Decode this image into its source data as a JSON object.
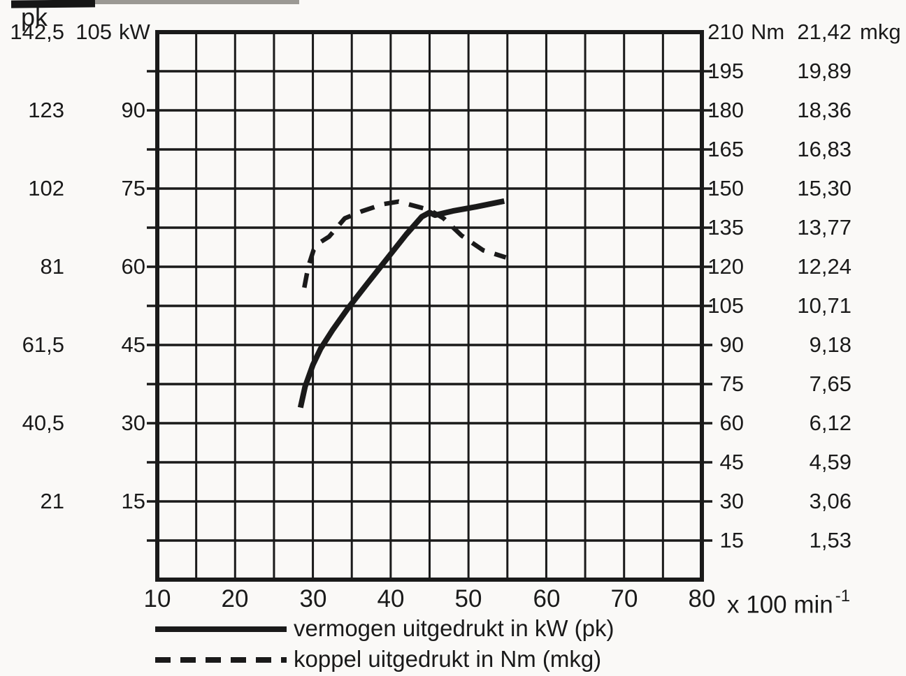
{
  "page": {
    "bg": "#faf9f7",
    "ink": "#1a1a1a"
  },
  "left_axis": {
    "pk_title": "pk",
    "kw_unit": "kW",
    "pk_values": [
      "142,5",
      "123",
      "102",
      "81",
      "61,5",
      "40,5",
      "21"
    ],
    "kw_values": [
      "105",
      "90",
      "75",
      "60",
      "45",
      "30",
      "15"
    ]
  },
  "right_axis": {
    "nm_unit": "Nm",
    "mkg_unit": "mkg",
    "nm_values": [
      "210",
      "195",
      "180",
      "165",
      "150",
      "135",
      "120",
      "105",
      "90",
      "75",
      "60",
      "45",
      "30",
      "15"
    ],
    "mkg_values": [
      "21,42",
      "19,89",
      "18,36",
      "16,83",
      "15,30",
      "13,77",
      "12,24",
      "10,71",
      "9,18",
      "7,65",
      "6,12",
      "4,59",
      "3,06",
      "1,53"
    ]
  },
  "x_axis": {
    "labels": [
      "10",
      "20",
      "30",
      "40",
      "50",
      "60",
      "70",
      "80"
    ],
    "unit": "x 100 min",
    "unit_sup": "-1"
  },
  "legend": {
    "items": [
      {
        "label": "vermogen uitgedrukt in kW (pk)",
        "style": "solid"
      },
      {
        "label": "koppel uitgedrukt in Nm (mkg)",
        "style": "dashed"
      }
    ]
  },
  "chart_data": {
    "type": "line",
    "title": "",
    "x": {
      "label": "x 100 min-1 (engine speed)",
      "range": [
        10,
        80
      ],
      "ticks": [
        10,
        20,
        30,
        40,
        50,
        60,
        70,
        80
      ],
      "grid_step": 5
    },
    "y_left": {
      "label": "kW",
      "range_kw": [
        0,
        105
      ],
      "grid_step_kw": 7.5,
      "tick_values_kw": [
        105,
        90,
        75,
        60,
        45,
        30,
        15
      ],
      "tick_values_pk": [
        142.5,
        123,
        102,
        81,
        61.5,
        40.5,
        21
      ]
    },
    "y_right": {
      "label": "Nm",
      "range_nm": [
        0,
        210
      ],
      "grid_step_nm": 15,
      "tick_values_nm": [
        210,
        195,
        180,
        165,
        150,
        135,
        120,
        105,
        90,
        75,
        60,
        45,
        30,
        15
      ],
      "tick_values_mkg": [
        21.42,
        19.89,
        18.36,
        16.83,
        15.3,
        13.77,
        12.24,
        10.71,
        9.18,
        7.65,
        6.12,
        4.59,
        3.06,
        1.53
      ]
    },
    "grid": true,
    "legend_position": "bottom-left",
    "series": [
      {
        "name": "vermogen uitgedrukt in kW (pk)",
        "unit": "kW",
        "axis": "left",
        "style": "solid",
        "points": [
          [
            28.4,
            33
          ],
          [
            29,
            37
          ],
          [
            30,
            41.2
          ],
          [
            31,
            44.3
          ],
          [
            32.5,
            47.8
          ],
          [
            34.5,
            52
          ],
          [
            37,
            56.8
          ],
          [
            39.5,
            61.5
          ],
          [
            42,
            66.2
          ],
          [
            44,
            69.6
          ],
          [
            45,
            70.4
          ],
          [
            45.7,
            69.9
          ],
          [
            48,
            70.7
          ],
          [
            51,
            71.5
          ],
          [
            54.6,
            72.6
          ]
        ]
      },
      {
        "name": "koppel uitgedrukt in Nm (mkg)",
        "unit": "Nm",
        "axis": "right",
        "style": "dashed",
        "points": [
          [
            28.9,
            112
          ],
          [
            29.4,
            120
          ],
          [
            30.1,
            126.5
          ],
          [
            31,
            129.5
          ],
          [
            32.1,
            131.6
          ],
          [
            34.1,
            138.6
          ],
          [
            36.3,
            141.3
          ],
          [
            39,
            144
          ],
          [
            41,
            145
          ],
          [
            43.4,
            143.1
          ],
          [
            45,
            141.8
          ],
          [
            46.8,
            138.6
          ],
          [
            49.1,
            132
          ],
          [
            51.9,
            126.3
          ],
          [
            54.8,
            123.6
          ]
        ]
      }
    ]
  }
}
